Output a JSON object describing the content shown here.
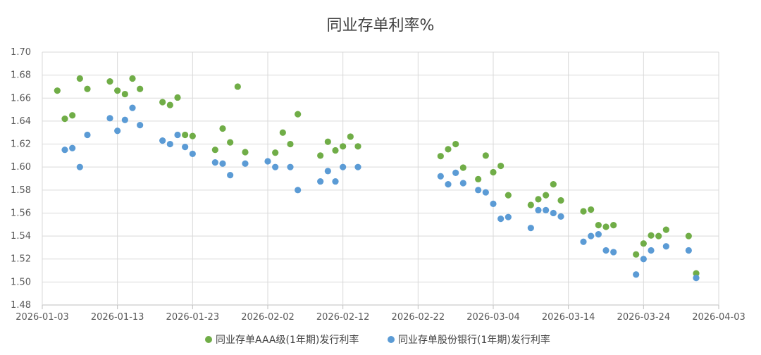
{
  "chart_data": {
    "type": "scatter",
    "title": "同业存单利率%",
    "xlabel": "",
    "ylabel": "",
    "ylim": [
      1.48,
      1.7
    ],
    "ytick_step": 0.02,
    "xlim": [
      "2026-01-03",
      "2026-04-03"
    ],
    "x_ticks": [
      "2026-01-03",
      "2026-01-13",
      "2026-01-23",
      "2026-02-02",
      "2026-02-12",
      "2026-02-22",
      "2026-03-04",
      "2026-03-14",
      "2026-03-24",
      "2026-04-03"
    ],
    "grid": "vertical and horizontal",
    "legend_position": "bottom",
    "colors": {
      "series1": "#70ad47",
      "series2": "#5b9bd5",
      "grid": "#d9d9d9",
      "axis": "#bfbfbf"
    },
    "series": [
      {
        "name": "同业存单AAA级(1年期)发行利率",
        "points": [
          [
            "2026-01-05",
            1.6665
          ],
          [
            "2026-01-06",
            1.642
          ],
          [
            "2026-01-07",
            1.645
          ],
          [
            "2026-01-08",
            1.677
          ],
          [
            "2026-01-09",
            1.668
          ],
          [
            "2026-01-12",
            1.6745
          ],
          [
            "2026-01-13",
            1.6665
          ],
          [
            "2026-01-14",
            1.6635
          ],
          [
            "2026-01-15",
            1.677
          ],
          [
            "2026-01-16",
            1.668
          ],
          [
            "2026-01-19",
            1.6565
          ],
          [
            "2026-01-20",
            1.654
          ],
          [
            "2026-01-21",
            1.6605
          ],
          [
            "2026-01-22",
            1.628
          ],
          [
            "2026-01-23",
            1.627
          ],
          [
            "2026-01-26",
            1.615
          ],
          [
            "2026-01-27",
            1.6335
          ],
          [
            "2026-01-28",
            1.6215
          ],
          [
            "2026-01-29",
            1.67
          ],
          [
            "2026-01-30",
            1.613
          ],
          [
            "2026-02-03",
            1.6125
          ],
          [
            "2026-02-04",
            1.63
          ],
          [
            "2026-02-05",
            1.62
          ],
          [
            "2026-02-06",
            1.646
          ],
          [
            "2026-02-09",
            1.61
          ],
          [
            "2026-02-10",
            1.622
          ],
          [
            "2026-02-11",
            1.6145
          ],
          [
            "2026-02-12",
            1.618
          ],
          [
            "2026-02-13",
            1.6265
          ],
          [
            "2026-02-14",
            1.618
          ],
          [
            "2026-02-25",
            1.6095
          ],
          [
            "2026-02-26",
            1.6155
          ],
          [
            "2026-02-27",
            1.62
          ],
          [
            "2026-02-28",
            1.5995
          ],
          [
            "2026-03-02",
            1.5895
          ],
          [
            "2026-03-03",
            1.61
          ],
          [
            "2026-03-04",
            1.5955
          ],
          [
            "2026-03-05",
            1.601
          ],
          [
            "2026-03-06",
            1.5755
          ],
          [
            "2026-03-09",
            1.567
          ],
          [
            "2026-03-10",
            1.572
          ],
          [
            "2026-03-11",
            1.5755
          ],
          [
            "2026-03-12",
            1.585
          ],
          [
            "2026-03-13",
            1.571
          ],
          [
            "2026-03-16",
            1.5615
          ],
          [
            "2026-03-17",
            1.563
          ],
          [
            "2026-03-18",
            1.5495
          ],
          [
            "2026-03-19",
            1.548
          ],
          [
            "2026-03-20",
            1.5495
          ],
          [
            "2026-03-23",
            1.524
          ],
          [
            "2026-03-24",
            1.5335
          ],
          [
            "2026-03-25",
            1.5405
          ],
          [
            "2026-03-26",
            1.54
          ],
          [
            "2026-03-27",
            1.5455
          ],
          [
            "2026-03-30",
            1.54
          ],
          [
            "2026-03-31",
            1.5075
          ]
        ]
      },
      {
        "name": "同业存单股份银行(1年期)发行利率",
        "points": [
          [
            "2026-01-06",
            1.615
          ],
          [
            "2026-01-07",
            1.6165
          ],
          [
            "2026-01-08",
            1.6
          ],
          [
            "2026-01-09",
            1.628
          ],
          [
            "2026-01-12",
            1.6425
          ],
          [
            "2026-01-13",
            1.6315
          ],
          [
            "2026-01-14",
            1.641
          ],
          [
            "2026-01-15",
            1.6515
          ],
          [
            "2026-01-16",
            1.6365
          ],
          [
            "2026-01-19",
            1.623
          ],
          [
            "2026-01-20",
            1.62
          ],
          [
            "2026-01-21",
            1.628
          ],
          [
            "2026-01-22",
            1.6175
          ],
          [
            "2026-01-23",
            1.6115
          ],
          [
            "2026-01-26",
            1.604
          ],
          [
            "2026-01-27",
            1.603
          ],
          [
            "2026-01-28",
            1.593
          ],
          [
            "2026-01-30",
            1.603
          ],
          [
            "2026-02-02",
            1.605
          ],
          [
            "2026-02-03",
            1.6
          ],
          [
            "2026-02-05",
            1.6
          ],
          [
            "2026-02-06",
            1.58
          ],
          [
            "2026-02-09",
            1.5875
          ],
          [
            "2026-02-10",
            1.5965
          ],
          [
            "2026-02-11",
            1.5875
          ],
          [
            "2026-02-12",
            1.6
          ],
          [
            "2026-02-14",
            1.6
          ],
          [
            "2026-02-25",
            1.592
          ],
          [
            "2026-02-26",
            1.585
          ],
          [
            "2026-02-27",
            1.595
          ],
          [
            "2026-02-28",
            1.586
          ],
          [
            "2026-03-02",
            1.58
          ],
          [
            "2026-03-03",
            1.578
          ],
          [
            "2026-03-04",
            1.568
          ],
          [
            "2026-03-05",
            1.555
          ],
          [
            "2026-03-06",
            1.5565
          ],
          [
            "2026-03-09",
            1.547
          ],
          [
            "2026-03-10",
            1.5625
          ],
          [
            "2026-03-11",
            1.5625
          ],
          [
            "2026-03-12",
            1.56
          ],
          [
            "2026-03-13",
            1.557
          ],
          [
            "2026-03-16",
            1.535
          ],
          [
            "2026-03-17",
            1.54
          ],
          [
            "2026-03-18",
            1.5415
          ],
          [
            "2026-03-19",
            1.5275
          ],
          [
            "2026-03-20",
            1.526
          ],
          [
            "2026-03-23",
            1.5065
          ],
          [
            "2026-03-24",
            1.52
          ],
          [
            "2026-03-25",
            1.5275
          ],
          [
            "2026-03-27",
            1.531
          ],
          [
            "2026-03-30",
            1.5275
          ],
          [
            "2026-03-31",
            1.5035
          ]
        ]
      }
    ]
  }
}
